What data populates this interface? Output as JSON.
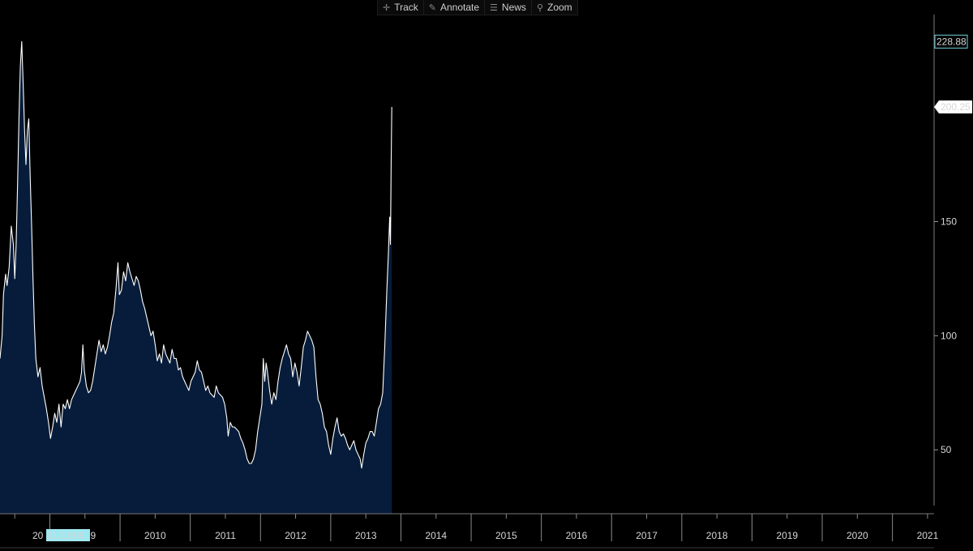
{
  "toolbar": {
    "track": {
      "label": "Track",
      "icon": "crosshair-icon"
    },
    "annotate": {
      "label": "Annotate",
      "icon": "pencil-icon"
    },
    "news": {
      "label": "News",
      "icon": "news-icon"
    },
    "zoom": {
      "label": "Zoom",
      "icon": "magnifier-icon"
    }
  },
  "cursor_date": "11/11/08",
  "cursor_year_fragment": "20",
  "colors": {
    "background": "#000000",
    "area_fill": "#061c3a",
    "line": "#ffffff",
    "cursor_label_bg": "#9ee9f1"
  },
  "chart_data": {
    "type": "area",
    "ylim": [
      22,
      240
    ],
    "yticks": [
      50,
      100,
      150
    ],
    "last_value_label": "200.25",
    "max_value_label": "228.88",
    "x_tick_labels": [
      "2009",
      "2010",
      "2011",
      "2012",
      "2013",
      "2014",
      "2015",
      "2016",
      "2017",
      "2018",
      "2019",
      "2020",
      "2021"
    ],
    "year_boundaries": [
      2008.38,
      2008.88,
      2009.38,
      2009.88,
      2010.38,
      2010.88,
      2011.38,
      2011.88,
      2012.38,
      2012.88,
      2013.38,
      2013.88,
      2014.38,
      2014.88,
      2015.38,
      2015.88,
      2016.38,
      2016.88,
      2017.38,
      2017.88,
      2018.38,
      2018.88,
      2019.38,
      2019.88,
      2020.38,
      2020.88,
      2021.38
    ],
    "xlim": [
      2008.17,
      2021.45
    ],
    "points": [
      [
        2008.17,
        90
      ],
      [
        2008.2,
        100
      ],
      [
        2008.22,
        118
      ],
      [
        2008.25,
        127
      ],
      [
        2008.27,
        122
      ],
      [
        2008.3,
        130
      ],
      [
        2008.33,
        148
      ],
      [
        2008.36,
        140
      ],
      [
        2008.38,
        125
      ],
      [
        2008.4,
        140
      ],
      [
        2008.42,
        165
      ],
      [
        2008.44,
        195
      ],
      [
        2008.46,
        218
      ],
      [
        2008.48,
        228.88
      ],
      [
        2008.5,
        210
      ],
      [
        2008.52,
        190
      ],
      [
        2008.54,
        175
      ],
      [
        2008.56,
        190
      ],
      [
        2008.58,
        195
      ],
      [
        2008.6,
        170
      ],
      [
        2008.62,
        148
      ],
      [
        2008.64,
        125
      ],
      [
        2008.66,
        105
      ],
      [
        2008.68,
        90
      ],
      [
        2008.71,
        82
      ],
      [
        2008.74,
        86
      ],
      [
        2008.77,
        78
      ],
      [
        2008.8,
        73
      ],
      [
        2008.83,
        68
      ],
      [
        2008.86,
        62
      ],
      [
        2008.89,
        55
      ],
      [
        2008.92,
        60
      ],
      [
        2008.95,
        66
      ],
      [
        2008.98,
        62
      ],
      [
        2009.01,
        70
      ],
      [
        2009.04,
        60
      ],
      [
        2009.07,
        70
      ],
      [
        2009.1,
        68
      ],
      [
        2009.13,
        72
      ],
      [
        2009.16,
        68
      ],
      [
        2009.19,
        72
      ],
      [
        2009.22,
        74
      ],
      [
        2009.25,
        76
      ],
      [
        2009.28,
        78
      ],
      [
        2009.31,
        80
      ],
      [
        2009.33,
        84
      ],
      [
        2009.35,
        96
      ],
      [
        2009.37,
        85
      ],
      [
        2009.4,
        78
      ],
      [
        2009.43,
        75
      ],
      [
        2009.46,
        76
      ],
      [
        2009.49,
        80
      ],
      [
        2009.52,
        86
      ],
      [
        2009.55,
        92
      ],
      [
        2009.58,
        98
      ],
      [
        2009.61,
        93
      ],
      [
        2009.64,
        96
      ],
      [
        2009.67,
        92
      ],
      [
        2009.7,
        95
      ],
      [
        2009.73,
        100
      ],
      [
        2009.76,
        106
      ],
      [
        2009.79,
        110
      ],
      [
        2009.82,
        120
      ],
      [
        2009.85,
        132
      ],
      [
        2009.87,
        118
      ],
      [
        2009.9,
        120
      ],
      [
        2009.93,
        128
      ],
      [
        2009.96,
        124
      ],
      [
        2009.99,
        132
      ],
      [
        2010.02,
        128
      ],
      [
        2010.05,
        125
      ],
      [
        2010.08,
        122
      ],
      [
        2010.11,
        126
      ],
      [
        2010.14,
        124
      ],
      [
        2010.17,
        120
      ],
      [
        2010.2,
        115
      ],
      [
        2010.23,
        112
      ],
      [
        2010.26,
        108
      ],
      [
        2010.29,
        104
      ],
      [
        2010.32,
        100
      ],
      [
        2010.35,
        102
      ],
      [
        2010.38,
        96
      ],
      [
        2010.41,
        89
      ],
      [
        2010.44,
        92
      ],
      [
        2010.47,
        88
      ],
      [
        2010.5,
        96
      ],
      [
        2010.53,
        92
      ],
      [
        2010.56,
        90
      ],
      [
        2010.59,
        88
      ],
      [
        2010.62,
        94
      ],
      [
        2010.65,
        90
      ],
      [
        2010.68,
        90
      ],
      [
        2010.71,
        85
      ],
      [
        2010.74,
        86
      ],
      [
        2010.77,
        82
      ],
      [
        2010.8,
        80
      ],
      [
        2010.83,
        78
      ],
      [
        2010.86,
        76
      ],
      [
        2010.89,
        80
      ],
      [
        2010.92,
        82
      ],
      [
        2010.95,
        84
      ],
      [
        2010.98,
        89
      ],
      [
        2011.01,
        85
      ],
      [
        2011.04,
        84
      ],
      [
        2011.07,
        80
      ],
      [
        2011.1,
        76
      ],
      [
        2011.13,
        78
      ],
      [
        2011.16,
        75
      ],
      [
        2011.19,
        74
      ],
      [
        2011.22,
        73
      ],
      [
        2011.25,
        78
      ],
      [
        2011.28,
        75
      ],
      [
        2011.31,
        74
      ],
      [
        2011.34,
        73
      ],
      [
        2011.37,
        70
      ],
      [
        2011.4,
        64
      ],
      [
        2011.42,
        56
      ],
      [
        2011.45,
        62
      ],
      [
        2011.48,
        60
      ],
      [
        2011.51,
        60
      ],
      [
        2011.54,
        59
      ],
      [
        2011.57,
        58
      ],
      [
        2011.6,
        55
      ],
      [
        2011.63,
        53
      ],
      [
        2011.66,
        50
      ],
      [
        2011.69,
        46
      ],
      [
        2011.72,
        44
      ],
      [
        2011.75,
        44
      ],
      [
        2011.78,
        46
      ],
      [
        2011.81,
        50
      ],
      [
        2011.84,
        58
      ],
      [
        2011.87,
        64
      ],
      [
        2011.9,
        70
      ],
      [
        2011.92,
        90
      ],
      [
        2011.94,
        80
      ],
      [
        2011.96,
        88
      ],
      [
        2011.98,
        84
      ],
      [
        2012.01,
        76
      ],
      [
        2012.04,
        70
      ],
      [
        2012.07,
        75
      ],
      [
        2012.1,
        72
      ],
      [
        2012.13,
        80
      ],
      [
        2012.16,
        86
      ],
      [
        2012.19,
        90
      ],
      [
        2012.22,
        93
      ],
      [
        2012.25,
        96
      ],
      [
        2012.28,
        92
      ],
      [
        2012.31,
        90
      ],
      [
        2012.34,
        82
      ],
      [
        2012.37,
        88
      ],
      [
        2012.4,
        84
      ],
      [
        2012.43,
        78
      ],
      [
        2012.46,
        86
      ],
      [
        2012.49,
        95
      ],
      [
        2012.52,
        98
      ],
      [
        2012.55,
        102
      ],
      [
        2012.58,
        100
      ],
      [
        2012.61,
        98
      ],
      [
        2012.64,
        95
      ],
      [
        2012.67,
        82
      ],
      [
        2012.7,
        72
      ],
      [
        2012.73,
        70
      ],
      [
        2012.76,
        66
      ],
      [
        2012.79,
        60
      ],
      [
        2012.82,
        58
      ],
      [
        2012.85,
        52
      ],
      [
        2012.88,
        48
      ],
      [
        2012.91,
        55
      ],
      [
        2012.94,
        60
      ],
      [
        2012.97,
        64
      ],
      [
        2013.0,
        58
      ],
      [
        2013.03,
        56
      ],
      [
        2013.06,
        57
      ],
      [
        2013.09,
        55
      ],
      [
        2013.12,
        52
      ],
      [
        2013.15,
        50
      ],
      [
        2013.18,
        52
      ],
      [
        2013.21,
        54
      ],
      [
        2013.24,
        50
      ],
      [
        2013.27,
        48
      ],
      [
        2013.3,
        46
      ],
      [
        2013.32,
        42
      ],
      [
        2013.35,
        48
      ],
      [
        2013.38,
        53
      ],
      [
        2013.41,
        55
      ],
      [
        2013.44,
        58
      ],
      [
        2013.47,
        58
      ],
      [
        2013.5,
        56
      ],
      [
        2013.53,
        62
      ],
      [
        2013.56,
        68
      ],
      [
        2013.59,
        70
      ],
      [
        2013.62,
        75
      ],
      [
        2013.65,
        95
      ],
      [
        2013.68,
        120
      ],
      [
        2013.7,
        135
      ],
      [
        2013.72,
        152
      ],
      [
        2013.73,
        140
      ],
      [
        2013.74,
        172
      ],
      [
        2013.75,
        200.25
      ]
    ]
  }
}
